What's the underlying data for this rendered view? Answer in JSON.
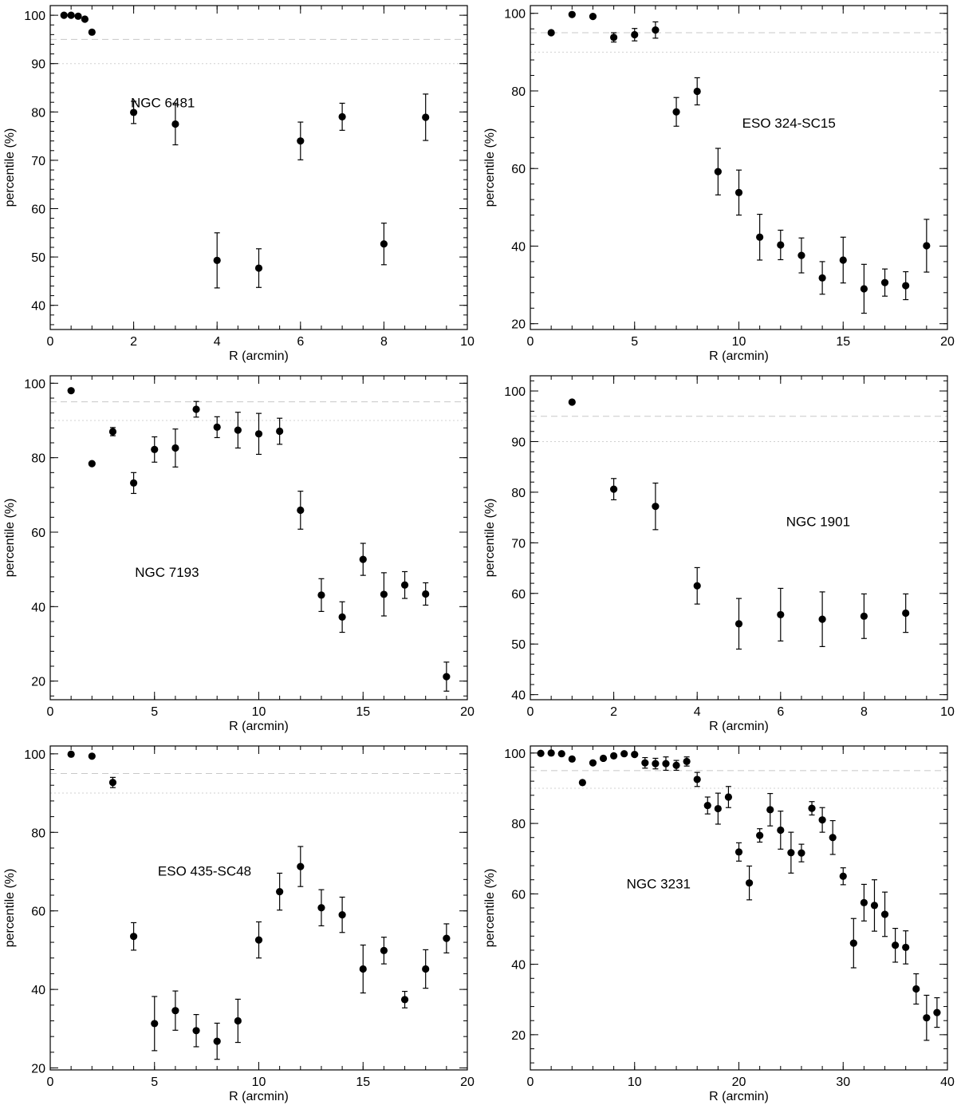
{
  "chart_data": [
    {
      "type": "scatter",
      "title": "NGC 6481",
      "xlabel": "R (arcmin)",
      "ylabel": "percentile (%)",
      "xlim": [
        0,
        10
      ],
      "ylim": [
        35,
        102
      ],
      "xticks": [
        "0",
        "2",
        "4",
        "6",
        "8",
        "10"
      ],
      "xtick_values": [
        0,
        2,
        4,
        6,
        8,
        10
      ],
      "yticks": [
        "40",
        "50",
        "60",
        "70",
        "80",
        "90",
        "100"
      ],
      "ytick_values": [
        40,
        50,
        60,
        70,
        80,
        90,
        100
      ],
      "xminor_step": 0.5,
      "yminor_step": 2,
      "reference_lines": [
        95,
        90
      ],
      "label_pos": [
        2.7,
        81
      ],
      "points": [
        {
          "x": 0.33,
          "y": 100,
          "err": 0
        },
        {
          "x": 0.5,
          "y": 100,
          "err": 0
        },
        {
          "x": 0.67,
          "y": 99.8,
          "err": 0
        },
        {
          "x": 0.83,
          "y": 99.2,
          "err": 0
        },
        {
          "x": 1.0,
          "y": 96.5,
          "err": 0
        },
        {
          "x": 2,
          "y": 79.9,
          "err": 2.3
        },
        {
          "x": 3,
          "y": 77.5,
          "err": 4.3
        },
        {
          "x": 4,
          "y": 49.3,
          "err": 5.7
        },
        {
          "x": 5,
          "y": 47.7,
          "err": 4.0
        },
        {
          "x": 6,
          "y": 74.0,
          "err": 3.9
        },
        {
          "x": 7,
          "y": 79.0,
          "err": 2.8
        },
        {
          "x": 8,
          "y": 52.7,
          "err": 4.3
        },
        {
          "x": 9,
          "y": 78.9,
          "err": 4.8
        }
      ]
    },
    {
      "type": "scatter",
      "title": "ESO 324-SC15",
      "xlabel": "R (arcmin)",
      "ylabel": "percentile (%)",
      "xlim": [
        0,
        20
      ],
      "ylim": [
        18.5,
        102
      ],
      "xticks": [
        "0",
        "5",
        "10",
        "15",
        "20"
      ],
      "xtick_values": [
        0,
        5,
        10,
        15,
        20
      ],
      "yticks": [
        "20",
        "40",
        "60",
        "80",
        "100"
      ],
      "ytick_values": [
        20,
        40,
        60,
        80,
        100
      ],
      "xminor_step": 1,
      "yminor_step": 4,
      "reference_lines": [
        95,
        90
      ],
      "label_pos": [
        12.4,
        70.5
      ],
      "points": [
        {
          "x": 1,
          "y": 95.0,
          "err": 0
        },
        {
          "x": 2,
          "y": 99.7,
          "err": 0
        },
        {
          "x": 3,
          "y": 99.2,
          "err": 0
        },
        {
          "x": 4,
          "y": 93.8,
          "err": 1.2
        },
        {
          "x": 5,
          "y": 94.5,
          "err": 1.6
        },
        {
          "x": 6,
          "y": 95.7,
          "err": 2.1
        },
        {
          "x": 7,
          "y": 74.6,
          "err": 3.7
        },
        {
          "x": 8,
          "y": 79.9,
          "err": 3.5
        },
        {
          "x": 9,
          "y": 59.2,
          "err": 6.0
        },
        {
          "x": 10,
          "y": 53.8,
          "err": 5.8
        },
        {
          "x": 11,
          "y": 42.3,
          "err": 5.9
        },
        {
          "x": 12,
          "y": 40.3,
          "err": 3.8
        },
        {
          "x": 13,
          "y": 37.6,
          "err": 4.5
        },
        {
          "x": 14,
          "y": 31.8,
          "err": 4.2
        },
        {
          "x": 15,
          "y": 36.4,
          "err": 5.9
        },
        {
          "x": 16,
          "y": 29.0,
          "err": 6.3
        },
        {
          "x": 17,
          "y": 30.6,
          "err": 3.5
        },
        {
          "x": 18,
          "y": 29.8,
          "err": 3.6
        },
        {
          "x": 19,
          "y": 40.1,
          "err": 6.8
        }
      ]
    },
    {
      "type": "scatter",
      "title": "NGC 7193",
      "xlabel": "R (arcmin)",
      "ylabel": "percentile (%)",
      "xlim": [
        0,
        20
      ],
      "ylim": [
        15,
        102
      ],
      "xticks": [
        "0",
        "5",
        "10",
        "15",
        "20"
      ],
      "xtick_values": [
        0,
        5,
        10,
        15,
        20
      ],
      "yticks": [
        "20",
        "40",
        "60",
        "80",
        "100"
      ],
      "ytick_values": [
        20,
        40,
        60,
        80,
        100
      ],
      "xminor_step": 1,
      "yminor_step": 4,
      "reference_lines": [
        95,
        90
      ],
      "label_pos": [
        5.6,
        48
      ],
      "points": [
        {
          "x": 1,
          "y": 98.0,
          "err": 0
        },
        {
          "x": 2,
          "y": 78.4,
          "err": 0
        },
        {
          "x": 3,
          "y": 87.0,
          "err": 1.1
        },
        {
          "x": 4,
          "y": 73.2,
          "err": 2.8
        },
        {
          "x": 5,
          "y": 82.2,
          "err": 3.4
        },
        {
          "x": 6,
          "y": 82.6,
          "err": 5.1
        },
        {
          "x": 7,
          "y": 93.0,
          "err": 2.1
        },
        {
          "x": 8,
          "y": 88.2,
          "err": 2.8
        },
        {
          "x": 9,
          "y": 87.4,
          "err": 4.8
        },
        {
          "x": 10,
          "y": 86.4,
          "err": 5.5
        },
        {
          "x": 11,
          "y": 87.1,
          "err": 3.5
        },
        {
          "x": 12,
          "y": 65.9,
          "err": 5.1
        },
        {
          "x": 13,
          "y": 43.1,
          "err": 4.4
        },
        {
          "x": 14,
          "y": 37.2,
          "err": 4.1
        },
        {
          "x": 15,
          "y": 52.7,
          "err": 4.3
        },
        {
          "x": 16,
          "y": 43.3,
          "err": 5.8
        },
        {
          "x": 17,
          "y": 45.8,
          "err": 3.6
        },
        {
          "x": 18,
          "y": 43.4,
          "err": 3.0
        },
        {
          "x": 19,
          "y": 21.2,
          "err": 3.9
        }
      ]
    },
    {
      "type": "scatter",
      "title": "NGC 1901",
      "xlabel": "R (arcmin)",
      "ylabel": "percentile (%)",
      "xlim": [
        0,
        10
      ],
      "ylim": [
        39,
        103
      ],
      "xticks": [
        "0",
        "2",
        "4",
        "6",
        "8",
        "10"
      ],
      "xtick_values": [
        0,
        2,
        4,
        6,
        8,
        10
      ],
      "yticks": [
        "40",
        "50",
        "60",
        "70",
        "80",
        "90",
        "100"
      ],
      "ytick_values": [
        40,
        50,
        60,
        70,
        80,
        90,
        100
      ],
      "xminor_step": 0.5,
      "yminor_step": 2,
      "reference_lines": [
        95,
        90
      ],
      "label_pos": [
        6.9,
        73.3
      ],
      "points": [
        {
          "x": 1,
          "y": 97.8,
          "err": 0
        },
        {
          "x": 2,
          "y": 80.6,
          "err": 2.1
        },
        {
          "x": 3,
          "y": 77.2,
          "err": 4.6
        },
        {
          "x": 4,
          "y": 61.5,
          "err": 3.6
        },
        {
          "x": 5,
          "y": 54.0,
          "err": 5.0
        },
        {
          "x": 6,
          "y": 55.8,
          "err": 5.2
        },
        {
          "x": 7,
          "y": 54.9,
          "err": 5.4
        },
        {
          "x": 8,
          "y": 55.5,
          "err": 4.4
        },
        {
          "x": 9,
          "y": 56.1,
          "err": 3.8
        }
      ]
    },
    {
      "type": "scatter",
      "title": "ESO 435-SC48",
      "xlabel": "R (arcmin)",
      "ylabel": "percentile (%)",
      "xlim": [
        0,
        20
      ],
      "ylim": [
        19.5,
        102
      ],
      "xticks": [
        "0",
        "5",
        "10",
        "15",
        "20"
      ],
      "xtick_values": [
        0,
        5,
        10,
        15,
        20
      ],
      "yticks": [
        "20",
        "40",
        "60",
        "80",
        "100"
      ],
      "ytick_values": [
        20,
        40,
        60,
        80,
        100
      ],
      "xminor_step": 1,
      "yminor_step": 4,
      "reference_lines": [
        95,
        90
      ],
      "label_pos": [
        7.4,
        69
      ],
      "points": [
        {
          "x": 1,
          "y": 99.9,
          "err": 0
        },
        {
          "x": 2,
          "y": 99.4,
          "err": 0
        },
        {
          "x": 3,
          "y": 92.7,
          "err": 1.3
        },
        {
          "x": 4,
          "y": 53.5,
          "err": 3.5
        },
        {
          "x": 5,
          "y": 31.3,
          "err": 6.9
        },
        {
          "x": 6,
          "y": 34.6,
          "err": 5.0
        },
        {
          "x": 7,
          "y": 29.5,
          "err": 4.1
        },
        {
          "x": 8,
          "y": 26.8,
          "err": 4.6
        },
        {
          "x": 9,
          "y": 32.0,
          "err": 5.5
        },
        {
          "x": 10,
          "y": 52.6,
          "err": 4.6
        },
        {
          "x": 11,
          "y": 64.9,
          "err": 4.7
        },
        {
          "x": 12,
          "y": 71.3,
          "err": 5.1
        },
        {
          "x": 13,
          "y": 60.8,
          "err": 4.6
        },
        {
          "x": 14,
          "y": 59.0,
          "err": 4.5
        },
        {
          "x": 15,
          "y": 45.2,
          "err": 6.1
        },
        {
          "x": 16,
          "y": 49.9,
          "err": 3.4
        },
        {
          "x": 17,
          "y": 37.4,
          "err": 2.1
        },
        {
          "x": 18,
          "y": 45.2,
          "err": 4.9
        },
        {
          "x": 19,
          "y": 53.0,
          "err": 3.7
        }
      ]
    },
    {
      "type": "scatter",
      "title": "NGC 3231",
      "xlabel": "R (arcmin)",
      "ylabel": "percentile (%)",
      "xlim": [
        0,
        40
      ],
      "ylim": [
        10,
        102
      ],
      "xticks": [
        "0",
        "10",
        "20",
        "30",
        "40"
      ],
      "xtick_values": [
        0,
        10,
        20,
        30,
        40
      ],
      "yticks": [
        "20",
        "40",
        "60",
        "80",
        "100"
      ],
      "ytick_values": [
        20,
        40,
        60,
        80,
        100
      ],
      "xminor_step": 2,
      "yminor_step": 4,
      "reference_lines": [
        95,
        90
      ],
      "label_pos": [
        12.3,
        61.5
      ],
      "points": [
        {
          "x": 1,
          "y": 99.9,
          "err": 0
        },
        {
          "x": 2,
          "y": 100,
          "err": 0
        },
        {
          "x": 3,
          "y": 99.8,
          "err": 0
        },
        {
          "x": 4,
          "y": 98.3,
          "err": 0
        },
        {
          "x": 5,
          "y": 91.6,
          "err": 0
        },
        {
          "x": 6,
          "y": 97.2,
          "err": 0
        },
        {
          "x": 7,
          "y": 98.5,
          "err": 0
        },
        {
          "x": 8,
          "y": 99.2,
          "err": 0
        },
        {
          "x": 9,
          "y": 99.8,
          "err": 0
        },
        {
          "x": 10,
          "y": 99.6,
          "err": 0
        },
        {
          "x": 11,
          "y": 97.2,
          "err": 1.5
        },
        {
          "x": 12,
          "y": 97.0,
          "err": 1.5
        },
        {
          "x": 13,
          "y": 97.0,
          "err": 1.9
        },
        {
          "x": 14,
          "y": 96.5,
          "err": 1.4
        },
        {
          "x": 15,
          "y": 97.6,
          "err": 1.3
        },
        {
          "x": 16,
          "y": 92.5,
          "err": 2.0
        },
        {
          "x": 17,
          "y": 85.1,
          "err": 2.4
        },
        {
          "x": 18,
          "y": 84.2,
          "err": 4.4
        },
        {
          "x": 19,
          "y": 87.5,
          "err": 3.0
        },
        {
          "x": 20,
          "y": 71.9,
          "err": 2.6
        },
        {
          "x": 21,
          "y": 63.1,
          "err": 4.8
        },
        {
          "x": 22,
          "y": 76.6,
          "err": 1.9
        },
        {
          "x": 23,
          "y": 83.9,
          "err": 4.6
        },
        {
          "x": 24,
          "y": 78.1,
          "err": 5.4
        },
        {
          "x": 25,
          "y": 71.7,
          "err": 5.8
        },
        {
          "x": 26,
          "y": 71.6,
          "err": 2.5
        },
        {
          "x": 27,
          "y": 84.3,
          "err": 1.9
        },
        {
          "x": 28,
          "y": 81.0,
          "err": 3.5
        },
        {
          "x": 29,
          "y": 76.0,
          "err": 4.8
        },
        {
          "x": 30,
          "y": 65.0,
          "err": 2.4
        },
        {
          "x": 31,
          "y": 46.0,
          "err": 7.0
        },
        {
          "x": 32,
          "y": 57.5,
          "err": 5.2
        },
        {
          "x": 33,
          "y": 56.7,
          "err": 7.3
        },
        {
          "x": 34,
          "y": 54.2,
          "err": 6.3
        },
        {
          "x": 35,
          "y": 45.4,
          "err": 4.8
        },
        {
          "x": 36,
          "y": 44.8,
          "err": 4.7
        },
        {
          "x": 37,
          "y": 33.0,
          "err": 4.3
        },
        {
          "x": 38,
          "y": 24.8,
          "err": 6.4
        },
        {
          "x": 39,
          "y": 26.3,
          "err": 4.2
        }
      ]
    }
  ]
}
